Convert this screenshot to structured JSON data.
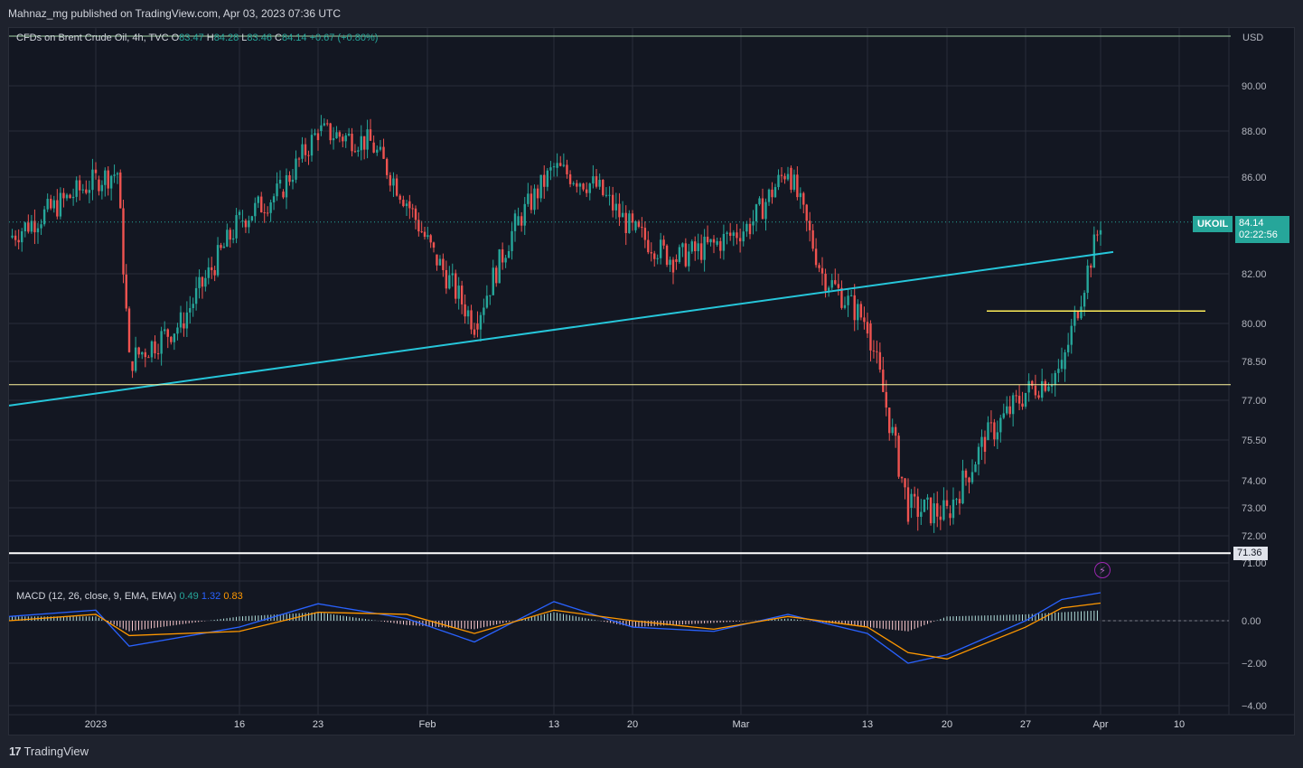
{
  "header": {
    "publish_info": "Mahnaz_mg published on TradingView.com, Apr 03, 2023 07:36 UTC"
  },
  "footer": {
    "brand": "TradingView",
    "brand_mark": "17"
  },
  "legend": {
    "title": "CFDs on Brent Crude Oil, 4h, TVC",
    "open_label": "O",
    "open_value": "83.47",
    "high_label": "H",
    "high_value": "84.28",
    "low_label": "L",
    "low_value": "83.46",
    "close_label": "C",
    "close_value": "84.14",
    "change": "+0.67 (+0.80%)"
  },
  "macd_legend": {
    "title": "MACD (12, 26, close, 9, EMA, EMA)",
    "hist_value": "0.49",
    "macd_value": "1.32",
    "signal_value": "0.83"
  },
  "price_axis": {
    "currency": "USD",
    "tick_labels": [
      "90.00",
      "88.00",
      "86.00",
      "82.00",
      "80.00",
      "78.50",
      "77.00",
      "75.50",
      "74.00",
      "73.00",
      "72.00",
      "71.00"
    ]
  },
  "macd_axis": {
    "tick_labels": [
      "0.00",
      "−2.00",
      "−4.00"
    ]
  },
  "time_axis": {
    "tick_labels": [
      "2023",
      "16",
      "23",
      "Feb",
      "13",
      "20",
      "Mar",
      "13",
      "20",
      "27",
      "Apr",
      "10"
    ]
  },
  "symbol_tag": {
    "symbol": "UKOIL",
    "price": "84.14",
    "countdown": "02:22:56"
  },
  "level_tag": {
    "value": "71.36"
  },
  "colors": {
    "background": "#131722",
    "up": "#26a69a",
    "down": "#ef5350",
    "trendline": "#26c6da",
    "support_yellow": "#fff59d",
    "support_white": "#ffffff",
    "macd_line": "#2962ff",
    "signal_line": "#ff9800"
  },
  "chart_data": [
    {
      "type": "line",
      "title": "CFDs on Brent Crude Oil, 4h, TVC",
      "x_ticks": [
        "2023",
        "16",
        "23",
        "Feb",
        "13",
        "20",
        "Mar",
        "13",
        "20",
        "27",
        "Apr",
        "10"
      ],
      "x": [
        "Dec 27",
        "Jan 3",
        "Jan 5",
        "Jan 9",
        "Jan 12",
        "Jan 16",
        "Jan 19",
        "Jan 23",
        "Jan 26",
        "Jan 30",
        "Feb 2",
        "Feb 6",
        "Feb 9",
        "Feb 13",
        "Feb 16",
        "Feb 20",
        "Feb 23",
        "Feb 27",
        "Mar 2",
        "Mar 6",
        "Mar 9",
        "Mar 13",
        "Mar 16",
        "Mar 20",
        "Mar 23",
        "Mar 27",
        "Mar 30",
        "Apr 3"
      ],
      "series": [
        {
          "values": [
            83.5,
            85.9,
            86.2,
            78.5,
            80.0,
            84.2,
            85.4,
            88.0,
            87.5,
            85.0,
            82.8,
            80.0,
            84.0,
            86.4,
            85.6,
            83.8,
            82.6,
            83.2,
            84.0,
            86.4,
            82.0,
            80.0,
            73.0,
            72.8,
            75.5,
            77.3,
            78.2,
            84.14
          ]
        }
      ],
      "annotations": [
        {
          "kind": "trendline",
          "from": [
            "Dec 27",
            76.8
          ],
          "to": [
            "Apr 3",
            82.9
          ]
        },
        {
          "kind": "horizontal_level",
          "value": 77.6
        },
        {
          "kind": "horizontal_level",
          "value": 71.36
        },
        {
          "kind": "horizontal_segment",
          "value": 80.5,
          "from": "Mar 25",
          "to": "Apr 8"
        }
      ],
      "ylim": [
        70.5,
        91.5
      ],
      "grid": true
    },
    {
      "type": "line",
      "title": "MACD (12, 26, close, 9, EMA, EMA)",
      "x": [
        "Dec 27",
        "Jan 3",
        "Jan 9",
        "Jan 16",
        "Jan 23",
        "Jan 30",
        "Feb 6",
        "Feb 13",
        "Feb 20",
        "Feb 27",
        "Mar 6",
        "Mar 13",
        "Mar 16",
        "Mar 20",
        "Mar 27",
        "Mar 30",
        "Apr 3"
      ],
      "series": [
        {
          "values": [
            0.2,
            0.5,
            -1.2,
            -0.3,
            0.8,
            0.1,
            -1.0,
            0.9,
            -0.3,
            -0.5,
            0.3,
            -0.6,
            -2.0,
            -1.6,
            0.0,
            1.0,
            1.32
          ]
        },
        {
          "values": [
            0.0,
            0.3,
            -0.7,
            -0.5,
            0.4,
            0.3,
            -0.6,
            0.5,
            0.0,
            -0.4,
            0.2,
            -0.3,
            -1.5,
            -1.8,
            -0.3,
            0.6,
            0.83
          ]
        }
      ],
      "histogram": [
        0.2,
        0.2,
        -0.5,
        0.2,
        0.4,
        -0.2,
        -0.4,
        0.4,
        -0.3,
        -0.1,
        0.1,
        -0.3,
        -0.5,
        0.2,
        0.3,
        0.4,
        0.49
      ],
      "ylim": [
        -4.5,
        1.5
      ],
      "grid": true
    }
  ]
}
